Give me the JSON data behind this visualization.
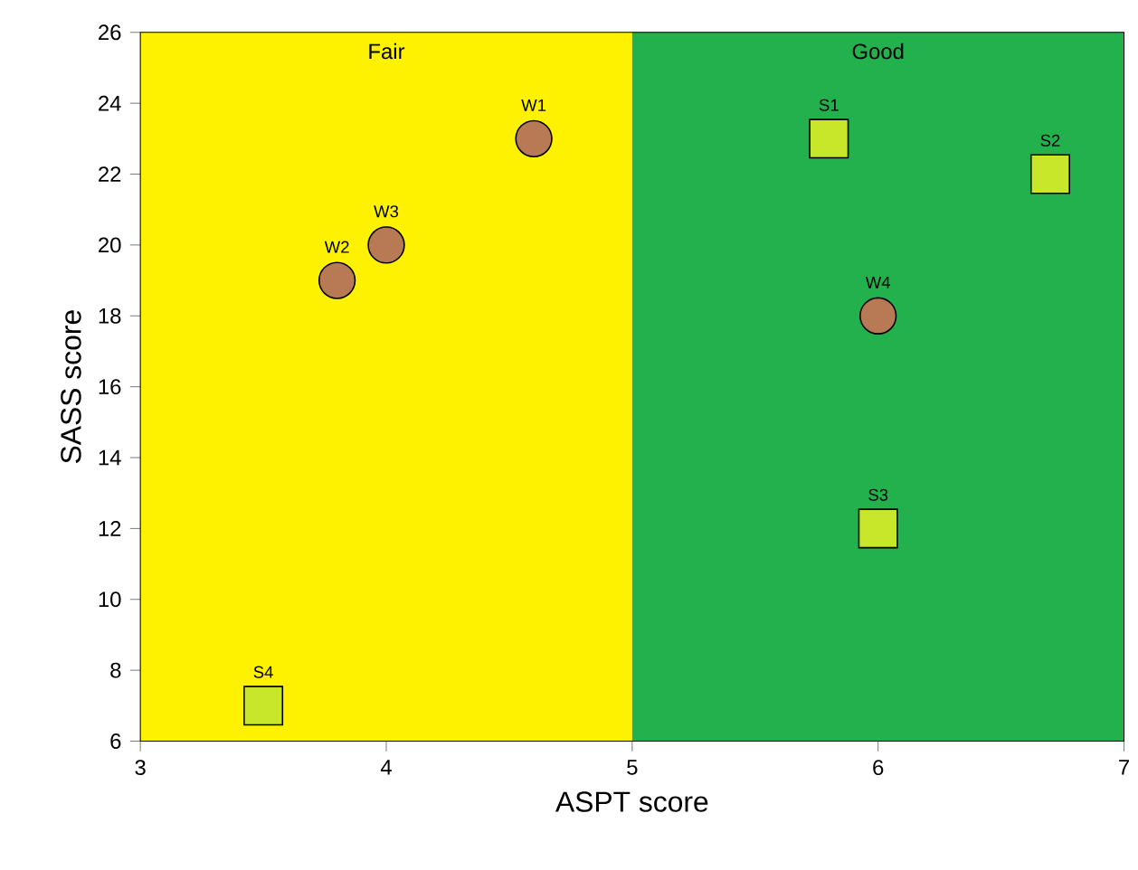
{
  "chart_data": {
    "type": "scatter",
    "xlabel": "ASPT score",
    "ylabel": "SASS score",
    "xlim": [
      3,
      7
    ],
    "ylim": [
      6,
      26
    ],
    "xticks": [
      3,
      4,
      5,
      6,
      7
    ],
    "yticks": [
      6,
      8,
      10,
      12,
      14,
      16,
      18,
      20,
      22,
      24,
      26
    ],
    "bands": [
      {
        "axis": "x",
        "from": 3,
        "to": 5,
        "label": "Fair",
        "color": "#fff200"
      },
      {
        "axis": "x",
        "from": 5,
        "to": 7,
        "label": "Good",
        "color": "#22b14c"
      }
    ],
    "series": [
      {
        "color": "#b87a55",
        "marker": "circle",
        "x": [
          4.6,
          3.8,
          4.0,
          6.0
        ],
        "values": [
          23,
          19,
          20,
          18
        ]
      },
      {
        "color": "#c8e62a",
        "marker": "square",
        "x": [
          5.8,
          6.7,
          6.0,
          3.5
        ],
        "values": [
          23,
          22,
          12,
          7
        ]
      }
    ],
    "annotations": [
      {
        "text": "W1",
        "x": 4.6,
        "y": 23
      },
      {
        "text": "W2",
        "x": 3.8,
        "y": 19
      },
      {
        "text": "W3",
        "x": 4.0,
        "y": 20
      },
      {
        "text": "W4",
        "x": 6.0,
        "y": 18
      },
      {
        "text": "S1",
        "x": 5.8,
        "y": 23
      },
      {
        "text": "S2",
        "x": 6.7,
        "y": 22
      },
      {
        "text": "S3",
        "x": 6.0,
        "y": 12
      },
      {
        "text": "S4",
        "x": 3.5,
        "y": 7
      }
    ]
  }
}
